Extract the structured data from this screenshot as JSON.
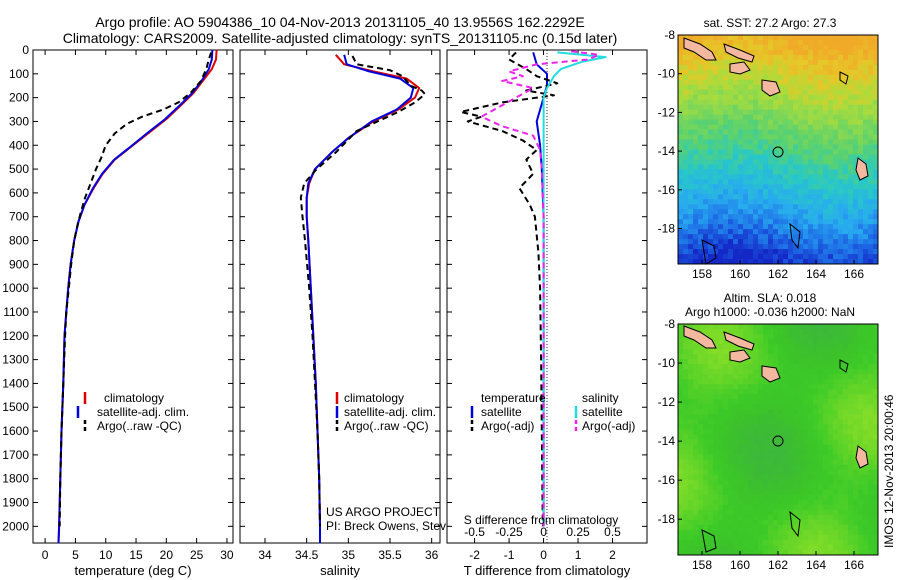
{
  "title_line1": "Argo profile: AO 5904386_10 04-Nov-2013 20131105_40 13.9556S 162.2292E",
  "title_line2": "Climatology: CARS2009. Satellite-adjusted climatology: synTS_20131105.nc (0.15d later)",
  "footer_project": "US ARGO PROJECT",
  "footer_pi": "PI: Breck Owens, Steve Jayne, and P.E. Robbi",
  "side_credit": "IMOS 12-Nov-2013 20:00:46",
  "colors": {
    "climatology": "#dd0000",
    "satellite": "#0000dd",
    "argo": "#000000",
    "sat_salinity": "#22dddd",
    "argo_salinity": "#ee22ee"
  },
  "chart_data": [
    {
      "id": "temperature",
      "type": "line",
      "xlabel": "temperature (deg C)",
      "ylabel": "pressure (dbar)",
      "xlim": [
        -2,
        31
      ],
      "ylim": [
        2070,
        0
      ],
      "xticks": [
        "0",
        "5",
        "10",
        "15",
        "20",
        "25",
        "30"
      ],
      "xtick_values": [
        0,
        5,
        10,
        15,
        20,
        25,
        30
      ],
      "yticks": [
        "0",
        "100",
        "200",
        "300",
        "400",
        "500",
        "600",
        "700",
        "800",
        "900",
        "1000",
        "1100",
        "1200",
        "1300",
        "1400",
        "1500",
        "1600",
        "1700",
        "1800",
        "1900",
        "2000"
      ],
      "ytick_values": [
        0,
        100,
        200,
        300,
        400,
        500,
        600,
        700,
        800,
        900,
        1000,
        1100,
        1200,
        1300,
        1400,
        1500,
        1600,
        1700,
        1800,
        1900,
        2000
      ],
      "legend": [
        "climatology",
        "satellite-adj. clim.",
        "Argo(..raw -QC)"
      ],
      "series": [
        {
          "name": "climatology",
          "color_key": "climatology",
          "dash": "",
          "points": [
            [
              28.3,
              0
            ],
            [
              28.2,
              40
            ],
            [
              27.5,
              80
            ],
            [
              26,
              130
            ],
            [
              24.5,
              180
            ],
            [
              22.5,
              230
            ],
            [
              20,
              290
            ],
            [
              17,
              350
            ],
            [
              14,
              410
            ],
            [
              11.5,
              460
            ],
            [
              9.5,
              520
            ],
            [
              8,
              580
            ],
            [
              6.5,
              650
            ],
            [
              5.5,
              720
            ],
            [
              4.8,
              800
            ],
            [
              4.2,
              900
            ],
            [
              3.8,
              1000
            ],
            [
              3.5,
              1100
            ],
            [
              3.2,
              1200
            ],
            [
              3,
              1400
            ],
            [
              2.7,
              1600
            ],
            [
              2.5,
              1800
            ],
            [
              2.3,
              2000
            ],
            [
              2.2,
              2070
            ]
          ]
        },
        {
          "name": "satellite-adj. clim.",
          "color_key": "satellite",
          "dash": "",
          "points": [
            [
              27.6,
              0
            ],
            [
              27.5,
              40
            ],
            [
              27,
              80
            ],
            [
              25.8,
              130
            ],
            [
              24.3,
              180
            ],
            [
              22.3,
              230
            ],
            [
              19.8,
              290
            ],
            [
              16.8,
              350
            ],
            [
              13.9,
              410
            ],
            [
              11.4,
              460
            ],
            [
              9.4,
              520
            ],
            [
              7.9,
              580
            ],
            [
              6.5,
              650
            ],
            [
              5.5,
              720
            ],
            [
              4.8,
              800
            ],
            [
              4.2,
              900
            ],
            [
              3.8,
              1000
            ],
            [
              3.5,
              1100
            ],
            [
              3.2,
              1200
            ],
            [
              3,
              1400
            ],
            [
              2.7,
              1600
            ],
            [
              2.5,
              1800
            ],
            [
              2.3,
              2000
            ],
            [
              2.2,
              2070
            ]
          ]
        },
        {
          "name": "Argo(..raw -QC)",
          "color_key": "argo",
          "dash": "6,4",
          "points": [
            [
              27.4,
              10
            ],
            [
              27,
              40
            ],
            [
              26.6,
              80
            ],
            [
              25.7,
              130
            ],
            [
              24,
              180
            ],
            [
              22,
              220
            ],
            [
              19.5,
              250
            ],
            [
              16,
              280
            ],
            [
              13.5,
              310
            ],
            [
              11.5,
              350
            ],
            [
              10,
              400
            ],
            [
              9.3,
              450
            ],
            [
              8.4,
              500
            ],
            [
              7.5,
              560
            ],
            [
              6.6,
              620
            ],
            [
              5.9,
              680
            ],
            [
              5.3,
              740
            ],
            [
              4.8,
              800
            ],
            [
              4.3,
              900
            ],
            [
              3.9,
              1000
            ],
            [
              3.5,
              1100
            ],
            [
              3.3,
              1200
            ],
            [
              3,
              1400
            ],
            [
              2.7,
              1600
            ],
            [
              2.5,
              1800
            ],
            [
              2.4,
              2000
            ]
          ]
        }
      ]
    },
    {
      "id": "salinity",
      "type": "line",
      "xlabel": "salinity",
      "ylabel": "",
      "xlim": [
        33.7,
        36.1
      ],
      "ylim": [
        2070,
        0
      ],
      "xticks": [
        "34",
        "34.5",
        "35",
        "35.5",
        "36"
      ],
      "xtick_values": [
        34,
        34.5,
        35,
        35.5,
        36
      ],
      "legend": [
        "climatology",
        "satellite-adj. clim.",
        "Argo(..raw -QC)"
      ],
      "series": [
        {
          "name": "climatology",
          "color_key": "climatology",
          "dash": "",
          "points": [
            [
              34.85,
              20
            ],
            [
              34.95,
              60
            ],
            [
              35.3,
              90
            ],
            [
              35.7,
              120
            ],
            [
              35.85,
              160
            ],
            [
              35.8,
              200
            ],
            [
              35.6,
              250
            ],
            [
              35.3,
              300
            ],
            [
              35,
              370
            ],
            [
              34.8,
              430
            ],
            [
              34.6,
              500
            ],
            [
              34.53,
              560
            ],
            [
              34.5,
              620
            ],
            [
              34.5,
              700
            ],
            [
              34.52,
              800
            ],
            [
              34.55,
              1000
            ],
            [
              34.58,
              1200
            ],
            [
              34.61,
              1400
            ],
            [
              34.63,
              1600
            ],
            [
              34.65,
              1800
            ],
            [
              34.66,
              2000
            ],
            [
              34.66,
              2070
            ]
          ]
        },
        {
          "name": "satellite-adj. clim.",
          "color_key": "satellite",
          "dash": "",
          "points": [
            [
              34.95,
              20
            ],
            [
              34.98,
              60
            ],
            [
              35.25,
              90
            ],
            [
              35.62,
              120
            ],
            [
              35.78,
              160
            ],
            [
              35.75,
              200
            ],
            [
              35.58,
              250
            ],
            [
              35.28,
              300
            ],
            [
              35,
              370
            ],
            [
              34.8,
              430
            ],
            [
              34.6,
              500
            ],
            [
              34.52,
              560
            ],
            [
              34.5,
              620
            ],
            [
              34.5,
              700
            ],
            [
              34.52,
              800
            ],
            [
              34.55,
              1000
            ],
            [
              34.58,
              1200
            ],
            [
              34.61,
              1400
            ],
            [
              34.63,
              1600
            ],
            [
              34.65,
              1800
            ],
            [
              34.66,
              2000
            ],
            [
              34.66,
              2070
            ]
          ]
        },
        {
          "name": "Argo(..raw -QC)",
          "color_key": "argo",
          "dash": "6,4",
          "points": [
            [
              35.05,
              25
            ],
            [
              35.1,
              60
            ],
            [
              35.5,
              85
            ],
            [
              35.65,
              110
            ],
            [
              35.75,
              150
            ],
            [
              35.88,
              170
            ],
            [
              35.92,
              185
            ],
            [
              35.8,
              220
            ],
            [
              35.6,
              260
            ],
            [
              35.1,
              340
            ],
            [
              34.85,
              430
            ],
            [
              34.62,
              500
            ],
            [
              34.47,
              560
            ],
            [
              34.43,
              620
            ],
            [
              34.45,
              700
            ],
            [
              34.48,
              800
            ],
            [
              34.53,
              1000
            ],
            [
              34.57,
              1200
            ],
            [
              34.6,
              1400
            ],
            [
              34.63,
              1600
            ],
            [
              34.65,
              1800
            ],
            [
              34.66,
              2000
            ]
          ]
        }
      ]
    },
    {
      "id": "difference",
      "type": "line",
      "xlabel": "T difference from climatology",
      "top_label": "S difference from climatology",
      "ylabel": "",
      "xlim": [
        -2.8,
        3
      ],
      "ylim": [
        2070,
        0
      ],
      "xticks": [
        "-2",
        "-1",
        "0",
        "1",
        "2"
      ],
      "xtick_values": [
        -2,
        -1,
        0,
        1,
        2
      ],
      "sticks": [
        "-0.5",
        "-0.25",
        "0",
        "0.25",
        "0.5"
      ],
      "stick_values": [
        -2,
        -1,
        0,
        1,
        2
      ],
      "legend_left_title": "temperature",
      "legend_right_title": "salinity",
      "legend_left": [
        "satellite",
        "Argo(-adj)"
      ],
      "legend_right": [
        "satellite",
        "Argo(-adj)"
      ],
      "series": [
        {
          "name": "T satellite",
          "color_key": "satellite",
          "dash": "",
          "points": [
            [
              -0.3,
              10
            ],
            [
              -0.2,
              60
            ],
            [
              0.1,
              100
            ],
            [
              0.1,
              150
            ],
            [
              0,
              200
            ],
            [
              -0.2,
              300
            ],
            [
              -0.1,
              400
            ],
            [
              -0.05,
              500
            ],
            [
              0,
              700
            ],
            [
              0,
              2000
            ]
          ]
        },
        {
          "name": "T Argo(-adj)",
          "color_key": "argo",
          "dash": "6,4",
          "points": [
            [
              -0.8,
              10
            ],
            [
              -1,
              40
            ],
            [
              -0.5,
              80
            ],
            [
              -0.2,
              110
            ],
            [
              0.4,
              140
            ],
            [
              -0.5,
              170
            ],
            [
              0.3,
              190
            ],
            [
              -1.2,
              220
            ],
            [
              -2.4,
              260
            ],
            [
              -1.8,
              280
            ],
            [
              -2.2,
              300
            ],
            [
              -1.2,
              340
            ],
            [
              -0.6,
              380
            ],
            [
              -0.2,
              420
            ],
            [
              -0.5,
              460
            ],
            [
              -0.3,
              520
            ],
            [
              -0.7,
              580
            ],
            [
              -0.4,
              650
            ],
            [
              -0.25,
              700
            ],
            [
              -0.15,
              850
            ],
            [
              -0.1,
              1000
            ],
            [
              -0.07,
              1300
            ],
            [
              -0.05,
              1600
            ],
            [
              -0.03,
              1900
            ],
            [
              -0.02,
              2000
            ]
          ]
        },
        {
          "name": "S satellite",
          "color_key": "sat_salinity",
          "dash": "",
          "points": [
            [
              0.4,
              10
            ],
            [
              1.8,
              30
            ],
            [
              1.1,
              50
            ],
            [
              0.5,
              80
            ],
            [
              0.3,
              110
            ],
            [
              0.1,
              160
            ],
            [
              0,
              200
            ],
            [
              0,
              300
            ],
            [
              0,
              400
            ],
            [
              0,
              500
            ],
            [
              0,
              700
            ],
            [
              0,
              2000
            ]
          ]
        },
        {
          "name": "S Argo(-adj)",
          "color_key": "argo_salinity",
          "dash": "6,4",
          "points": [
            [
              0.8,
              5
            ],
            [
              1.6,
              20
            ],
            [
              1.3,
              40
            ],
            [
              -0.2,
              60
            ],
            [
              -1,
              90
            ],
            [
              -0.6,
              110
            ],
            [
              -1.2,
              130
            ],
            [
              -0.3,
              160
            ],
            [
              -0.8,
              200
            ],
            [
              -1.3,
              240
            ],
            [
              -1.8,
              280
            ],
            [
              -1.2,
              320
            ],
            [
              -0.3,
              360
            ],
            [
              -0.1,
              420
            ],
            [
              -0.05,
              500
            ],
            [
              0,
              700
            ],
            [
              0,
              2000
            ]
          ]
        }
      ]
    }
  ],
  "maps": [
    {
      "id": "sst",
      "title": "sat. SST: 27.2 Argo: 27.3",
      "subtitle": "",
      "xticks": [
        "158",
        "160",
        "162",
        "164",
        "166"
      ],
      "yticks": [
        "-8",
        "-10",
        "-12",
        "-14",
        "-16",
        "-18"
      ]
    },
    {
      "id": "sla",
      "title": "Altim. SLA: 0.018",
      "subtitle": "Argo h1000: -0.036 h2000: NaN",
      "xticks": [
        "158",
        "160",
        "162",
        "164",
        "166"
      ],
      "yticks": [
        "-8",
        "-10",
        "-12",
        "-14",
        "-16",
        "-18"
      ]
    }
  ]
}
